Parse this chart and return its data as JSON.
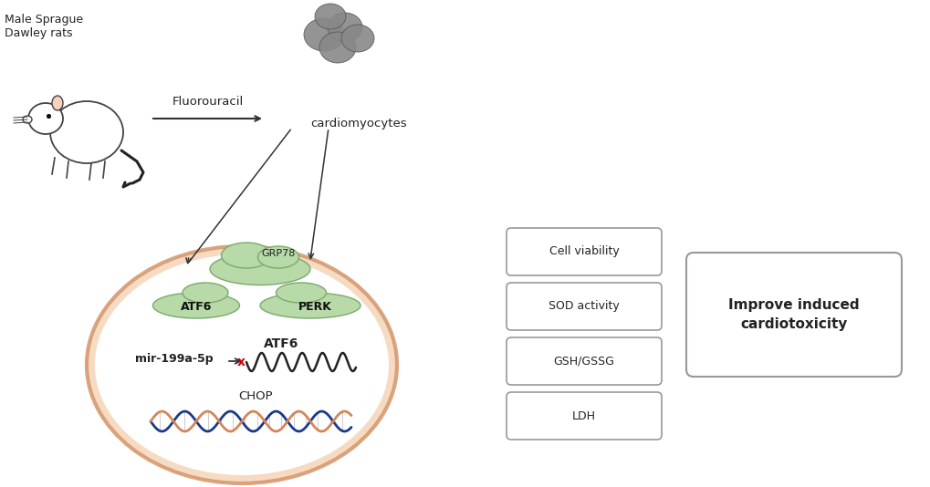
{
  "bg_color": "#ffffff",
  "fig_width": 10.2,
  "fig_height": 5.34,
  "dpi": 100,
  "rat_label": "Male Sprague\nDawley rats",
  "fluorouracil_label": "Fluorouracil",
  "cardiomyocytes_label": "cardiomyocytes",
  "grp78_label": "GRP78",
  "atf6_top_label": "ATF6",
  "perk_label": "PERK",
  "mir_label": "mir-199a-5p",
  "atf6_mid_label": "ATF6",
  "chop_label": "CHOP",
  "cell_viability": "Cell viability",
  "sod_activity": "SOD activity",
  "gsh_gssg": "GSH/GSSG",
  "ldh": "LDH",
  "improve_label": "Improve induced\ncardiotoxicity",
  "ellipse_color": "#f5d5b8",
  "ellipse_edge": "#d4956a",
  "grp78_fill": "#b8d9a8",
  "grp78_edge": "#7aaa6a",
  "atf6_fill": "#b8d9a8",
  "atf6_edge": "#7aaa6a",
  "perk_fill": "#b8d9a8",
  "perk_edge": "#7aaa6a",
  "arrow_color": "#333333",
  "box_edge_color": "#999999",
  "box_fill_color": "#ffffff",
  "improve_box_edge": "#999999",
  "improve_box_fill": "#ffffff",
  "dna_blue_color": "#1a3a8a",
  "dna_orange_color": "#d4855a",
  "wave_atf6_color": "#222222",
  "x_color": "#cc0000",
  "text_color": "#222222"
}
